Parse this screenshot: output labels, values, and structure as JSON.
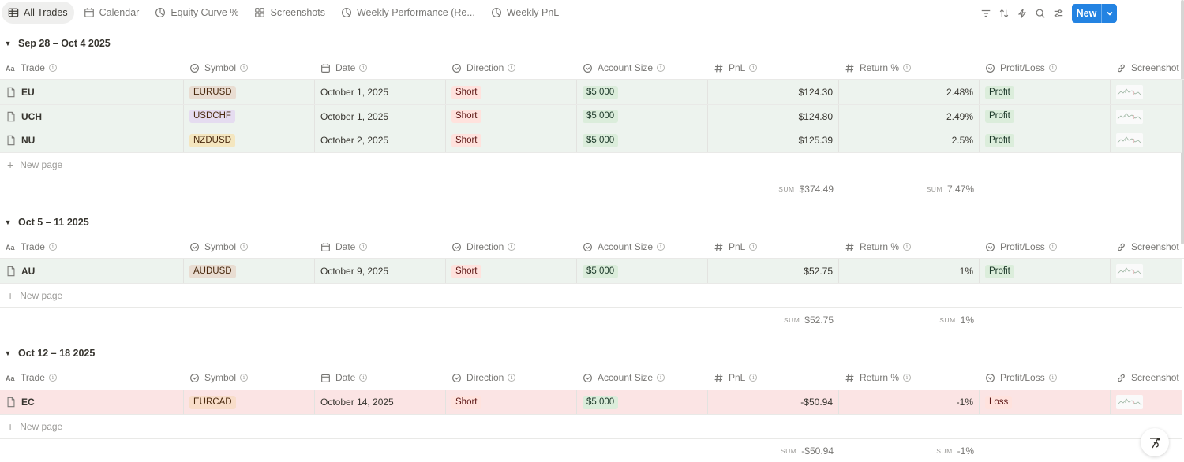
{
  "tabs": [
    {
      "label": "All Trades",
      "icon": "table-icon",
      "active": true
    },
    {
      "label": "Calendar",
      "icon": "calendar-icon",
      "active": false
    },
    {
      "label": "Equity Curve %",
      "icon": "chart-icon",
      "active": false
    },
    {
      "label": "Screenshots",
      "icon": "gallery-icon",
      "active": false
    },
    {
      "label": "Weekly Performance (Re...",
      "icon": "chart-icon",
      "active": false
    },
    {
      "label": "Weekly PnL",
      "icon": "chart-icon",
      "active": false
    }
  ],
  "toolbar": {
    "new_label": "New"
  },
  "columns": {
    "trade": "Trade",
    "symbol": "Symbol",
    "date": "Date",
    "direction": "Direction",
    "account_size": "Account Size",
    "pnl": "PnL",
    "return": "Return %",
    "profit_loss": "Profit/Loss",
    "screenshot": "Screenshot"
  },
  "new_page_label": "New page",
  "sum_label": "SUM",
  "colors": {
    "profit_row": "#edf3ee",
    "loss_row": "#fbe4e4",
    "accent": "#2383e2"
  },
  "groups": [
    {
      "title": "Sep 28 – Oct 4 2025",
      "rows": [
        {
          "trade": "EU",
          "symbol": "EURUSD",
          "symbol_color": "#e9ddd2",
          "date": "October 1, 2025",
          "direction": "Short",
          "account_size": "$5 000",
          "pnl": "$124.30",
          "return": "2.48%",
          "status": "Profit",
          "kind": "profit"
        },
        {
          "trade": "UCH",
          "symbol": "USDCHF",
          "symbol_color": "#e5dcf0",
          "date": "October 1, 2025",
          "direction": "Short",
          "account_size": "$5 000",
          "pnl": "$124.80",
          "return": "2.49%",
          "status": "Profit",
          "kind": "profit"
        },
        {
          "trade": "NU",
          "symbol": "NZDUSD",
          "symbol_color": "#f4e6bf",
          "date": "October 2, 2025",
          "direction": "Short",
          "account_size": "$5 000",
          "pnl": "$125.39",
          "return": "2.5%",
          "status": "Profit",
          "kind": "profit"
        }
      ],
      "sum_pnl": "$374.49",
      "sum_return": "7.47%"
    },
    {
      "title": "Oct 5 – 11 2025",
      "rows": [
        {
          "trade": "AU",
          "symbol": "AUDUSD",
          "symbol_color": "#e9ddd2",
          "date": "October 9, 2025",
          "direction": "Short",
          "account_size": "$5 000",
          "pnl": "$52.75",
          "return": "1%",
          "status": "Profit",
          "kind": "profit"
        }
      ],
      "sum_pnl": "$52.75",
      "sum_return": "1%"
    },
    {
      "title": "Oct 12 – 18 2025",
      "rows": [
        {
          "trade": "EC",
          "symbol": "EURCAD",
          "symbol_color": "#f8ddc9",
          "date": "October 14, 2025",
          "direction": "Short",
          "account_size": "$5 000",
          "pnl": "-$50.94",
          "return": "-1%",
          "status": "Loss",
          "kind": "loss"
        }
      ],
      "sum_pnl": "-$50.94",
      "sum_return": "-1%"
    }
  ]
}
